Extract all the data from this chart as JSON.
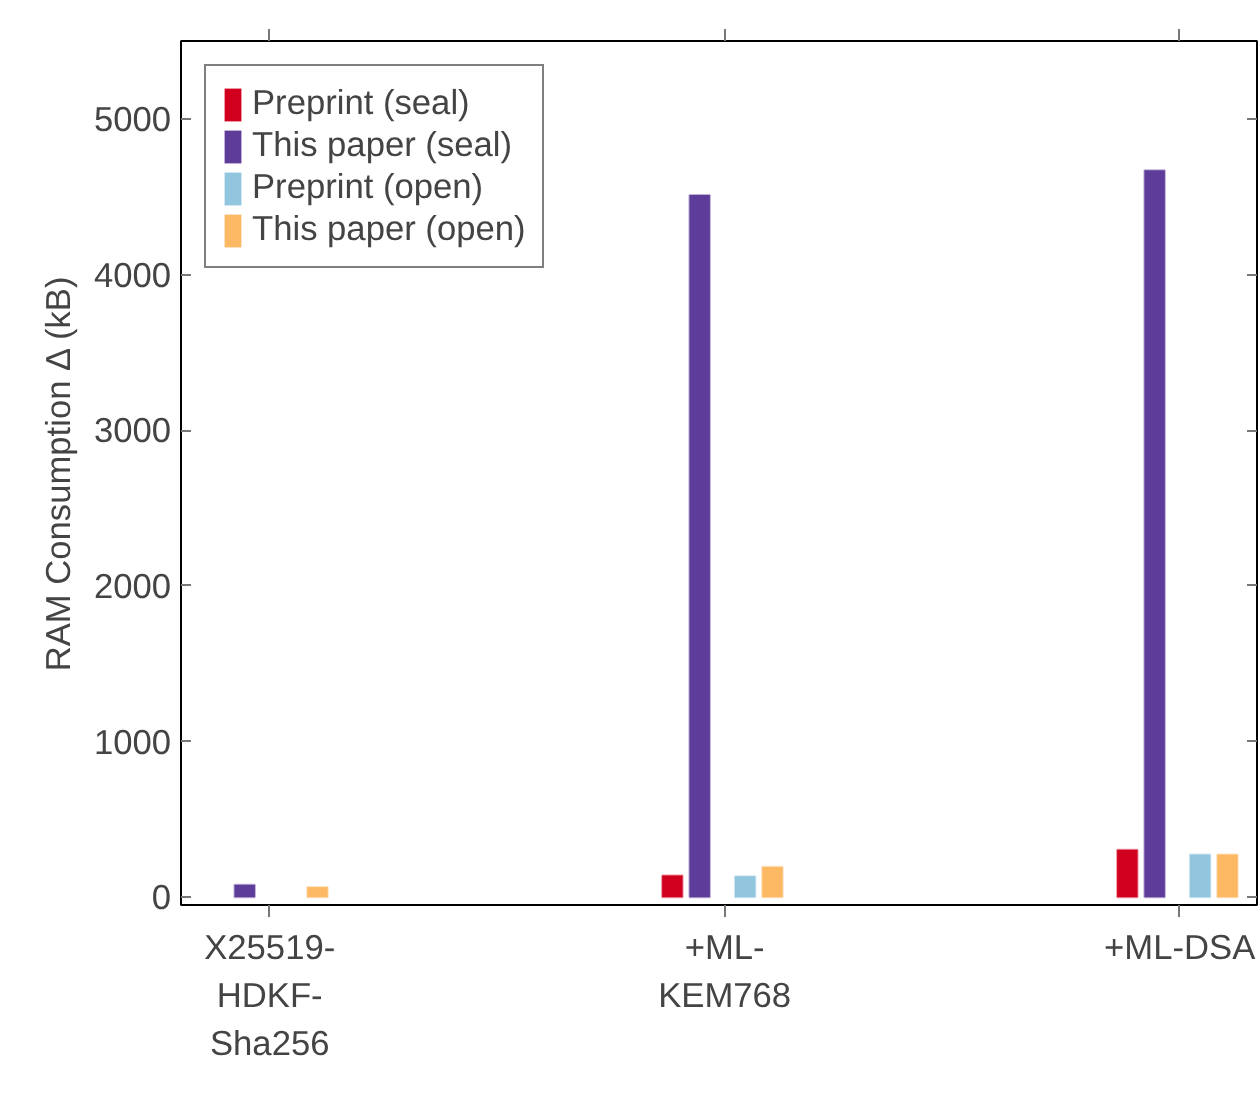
{
  "chart_data": {
    "type": "bar",
    "ylabel": "RAM Consumption Δ (kB)",
    "categories": [
      "X25519-HDKF-Sha256",
      "+ML-KEM768",
      "+ML-DSA"
    ],
    "series": [
      {
        "name": "Preprint (seal)",
        "color": "#d1001f",
        "values": [
          null,
          140,
          305
        ]
      },
      {
        "name": "This paper (seal)",
        "color": "#5e3c99",
        "values": [
          80,
          4510,
          4670
        ]
      },
      {
        "name": "Preprint (open)",
        "color": "#92c5de",
        "values": [
          null,
          135,
          275
        ]
      },
      {
        "name": "This paper (open)",
        "color": "#fdb863",
        "values": [
          65,
          195,
          275
        ]
      }
    ],
    "ylim": [
      -50,
      5500
    ],
    "yticks": [
      0,
      1000,
      2000,
      3000,
      4000,
      5000
    ],
    "grid": false,
    "legend": "top left"
  }
}
